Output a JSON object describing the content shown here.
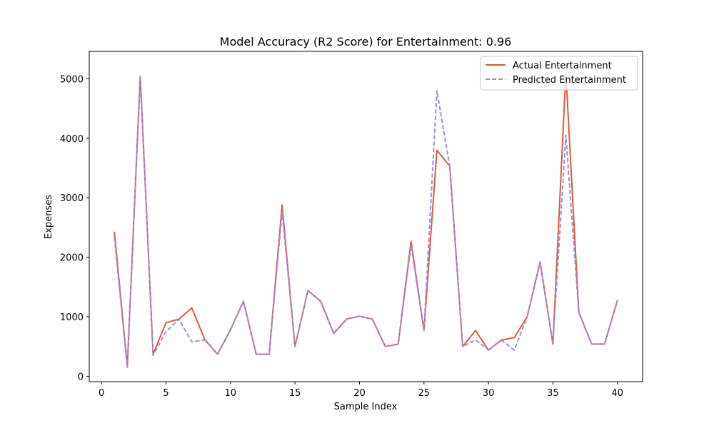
{
  "chart_data": {
    "type": "line",
    "title": "Model Accuracy (R2 Score) for Entertainment: 0.96",
    "xlabel": "Sample Index",
    "ylabel": "Expenses",
    "xlim": [
      -0.95,
      41.95
    ],
    "ylim": [
      -90,
      5460
    ],
    "xticks": [
      0,
      5,
      10,
      15,
      20,
      25,
      30,
      35,
      40
    ],
    "yticks": [
      0,
      1000,
      2000,
      3000,
      4000,
      5000
    ],
    "grid": false,
    "legend_position": "top-right",
    "x": [
      1,
      2,
      3,
      4,
      5,
      6,
      7,
      8,
      9,
      10,
      11,
      12,
      13,
      14,
      15,
      16,
      17,
      18,
      19,
      20,
      21,
      22,
      23,
      24,
      25,
      26,
      27,
      28,
      29,
      30,
      31,
      32,
      33,
      34,
      35,
      36,
      37,
      38,
      39,
      40
    ],
    "series": [
      {
        "name": "Actual Entertainment",
        "color": "#e05a3a",
        "dash": "solid",
        "values": [
          2430,
          170,
          5040,
          370,
          900,
          960,
          1150,
          620,
          370,
          780,
          1260,
          370,
          370,
          2880,
          500,
          1440,
          1260,
          720,
          960,
          1010,
          960,
          500,
          540,
          2270,
          770,
          3800,
          3530,
          500,
          770,
          440,
          610,
          650,
          1000,
          1920,
          540,
          5100,
          1080,
          540,
          540,
          1280
        ]
      },
      {
        "name": "Predicted Entertainment",
        "color": "#9a8fe8",
        "dash": "dashed",
        "values": [
          2330,
          150,
          5050,
          350,
          750,
          960,
          580,
          610,
          370,
          780,
          1260,
          370,
          370,
          2760,
          500,
          1440,
          1260,
          720,
          960,
          1010,
          960,
          500,
          540,
          2200,
          770,
          4800,
          3530,
          500,
          610,
          440,
          610,
          440,
          1000,
          1920,
          540,
          4050,
          1080,
          540,
          540,
          1280
        ]
      }
    ]
  }
}
